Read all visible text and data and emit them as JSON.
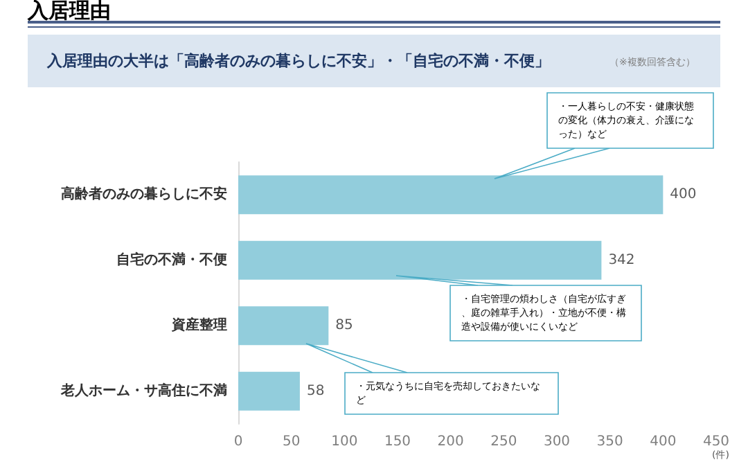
{
  "chart_data": {
    "type": "bar",
    "orientation": "horizontal",
    "title": "入居理由",
    "subtitle": "入居理由の大半は「高齢者のみの暮らしに不安」・「自宅の不満・不便」",
    "categories": [
      "高齢者のみの暮らしに不安",
      "自宅の不満・不便",
      "資産整理",
      "老人ホーム・サ高住に不満"
    ],
    "values": [
      400,
      342,
      85,
      58
    ],
    "color": "#92cddc",
    "data_labels": true,
    "xlim": [
      0,
      450
    ],
    "xticks": [
      0,
      50,
      100,
      150,
      200,
      250,
      300,
      350,
      400,
      450
    ],
    "xlabel": "(件)",
    "grid": false,
    "annotations": [
      "（※複数回答含む）",
      "・一人暮らしの不安・健康状態の変化（体力の衰え、介護になった）など",
      "・自宅管理の煩わしさ（自宅が広すぎ、庭の雑草手入れ）・立地が不便・構造や設備が使いにくいなど",
      "・元気なうちに自宅を売却しておきたいなど"
    ]
  }
}
